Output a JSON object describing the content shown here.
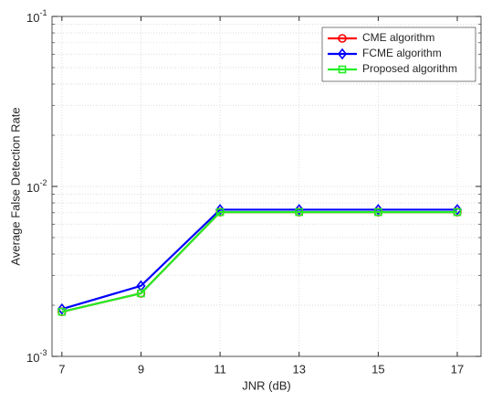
{
  "chart_data": {
    "type": "line",
    "x_label": "JNR (dB)",
    "y_label": "Average False Detection Rate",
    "x": [
      7,
      9,
      11,
      13,
      15,
      17
    ],
    "series": [
      {
        "name": "CME algorithm",
        "color": "#ff0000",
        "marker": "circle",
        "values": [
          0.00183,
          0.00235,
          0.00706,
          0.00706,
          0.00706,
          0.00706
        ]
      },
      {
        "name": "FCME algorithm",
        "color": "#0000ff",
        "marker": "diamond",
        "values": [
          0.0019,
          0.0026,
          0.0073,
          0.0073,
          0.0073,
          0.0073
        ]
      },
      {
        "name": "Proposed algorithm",
        "color": "#22ee22",
        "marker": "square",
        "values": [
          0.00183,
          0.00235,
          0.00706,
          0.00706,
          0.00706,
          0.00706
        ]
      }
    ],
    "xlim": [
      6.75,
      17.6
    ],
    "xticks": [
      7,
      9,
      11,
      13,
      15,
      17
    ],
    "ylim": [
      0.001,
      0.1
    ],
    "log_y": true,
    "yticks": [
      {
        "value": 0.001,
        "label": "10",
        "exponent": "-3"
      },
      {
        "value": 0.01,
        "label": "10",
        "exponent": "-2"
      },
      {
        "value": 0.1,
        "label": "10",
        "exponent": "-1"
      }
    ],
    "grid": true,
    "minor_grid": true,
    "legend": "top-right"
  }
}
